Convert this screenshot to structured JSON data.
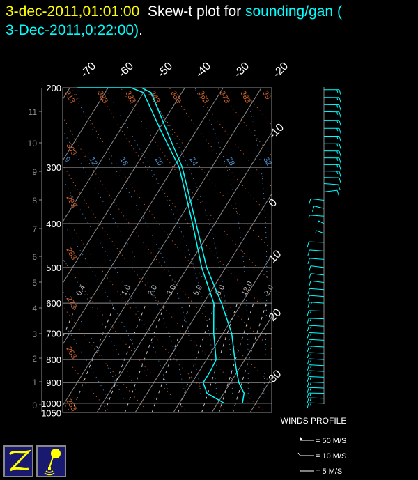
{
  "header": {
    "datetime": "3-dec-2011,01:01:00",
    "title_text": "Skew-t plot for",
    "source": "sounding/gan (",
    "source_time": "3-Dec-2011,0:22:00)",
    "period": "."
  },
  "colors": {
    "background": "#000000",
    "sounding": "#00ffff",
    "isotherm": "#8c8c8c",
    "dry_adiabat": "#d2642d",
    "moist_adiabat": "#4a90d0",
    "mixing_ratio": "#c8c8c8",
    "title_date": "#ffff00",
    "icon_bg": "#191970",
    "icon_fg": "#ffff00"
  },
  "chart_data": {
    "type": "line",
    "subtype": "skew-t log-p",
    "y_pressure_ticks": [
      "200",
      "300",
      "400",
      "500",
      "600",
      "700",
      "800",
      "900",
      "1000",
      "1050"
    ],
    "y_height_ticks_km": [
      "0",
      "1",
      "2",
      "3",
      "4",
      "5",
      "6",
      "7",
      "8",
      "9",
      "10",
      "11"
    ],
    "top_temperature_ticks": [
      "-70",
      "-60",
      "-50",
      "-40",
      "-30",
      "-20"
    ],
    "right_temperature_ticks": [
      "-10",
      "0",
      "10",
      "20",
      "30"
    ],
    "dry_adiabat_labels": [
      "253",
      "263",
      "273",
      "283",
      "293",
      "303",
      "313",
      "323",
      "333",
      "343",
      "353",
      "363",
      "373",
      "383",
      "39"
    ],
    "moist_adiabat_labels": [
      "9",
      "12",
      "16",
      "20",
      "24",
      "28",
      "32"
    ],
    "mixing_ratio_labels": [
      "0.4",
      "1.0",
      "2.0",
      "3.0",
      "5.0",
      "8.0",
      "12.0",
      "2.0"
    ],
    "ylim_hpa": [
      1050,
      200
    ],
    "grid": true,
    "series": [
      {
        "key": "temperature",
        "pressure_hpa": [
          1000,
          950,
          900,
          850,
          800,
          700,
          600,
          500,
          400,
          300,
          250,
          205,
          200
        ],
        "values_c": [
          26.5,
          25.3,
          22.2,
          19.8,
          17.4,
          12.3,
          4.7,
          -5.0,
          -14.9,
          -27.7,
          -37.5,
          -48,
          -51.3
        ]
      },
      {
        "key": "dewpoint",
        "pressure_hpa": [
          1000,
          950,
          900,
          850,
          800,
          700,
          600,
          500,
          400,
          300,
          250,
          205,
          200,
          200
        ],
        "values_c": [
          21.8,
          15.6,
          12.9,
          12.9,
          12.5,
          7.6,
          2.7,
          -6.3,
          -15.8,
          -28.5,
          -39,
          -50,
          -54,
          -68
        ]
      }
    ],
    "winds": {
      "title": "WINDS PROFILE",
      "legend": [
        {
          "label": "= 50 M/S"
        },
        {
          "label": "= 10 M/S"
        },
        {
          "label": "= 5 M/S"
        }
      ],
      "pressure_hpa": [
        202,
        210,
        218,
        226,
        236,
        246,
        256,
        266,
        276,
        286,
        296,
        306,
        316,
        326,
        340,
        355,
        370,
        385,
        400,
        420,
        440,
        460,
        480,
        500,
        520,
        540,
        560,
        580,
        600,
        625,
        650,
        675,
        700,
        725,
        750,
        775,
        800,
        825,
        850,
        875,
        900,
        925,
        950,
        975,
        1000
      ],
      "direction_deg": [
        90,
        92,
        95,
        95,
        92,
        90,
        90,
        90,
        92,
        92,
        90,
        95,
        95,
        110,
        60,
        300,
        320,
        290,
        340,
        330,
        280,
        290,
        290,
        300,
        300,
        300,
        290,
        290,
        290,
        280,
        280,
        285,
        285,
        285,
        285,
        285,
        285,
        285,
        285,
        280,
        280,
        280,
        275,
        280,
        280
      ],
      "speed_ms": [
        15,
        15,
        15,
        15,
        15,
        15,
        15,
        15,
        15,
        15,
        15,
        15,
        10,
        10,
        10,
        10,
        10,
        5,
        5,
        5,
        10,
        10,
        10,
        10,
        10,
        10,
        10,
        10,
        15,
        15,
        15,
        15,
        15,
        15,
        15,
        15,
        15,
        15,
        15,
        15,
        15,
        15,
        15,
        15,
        15
      ]
    }
  }
}
